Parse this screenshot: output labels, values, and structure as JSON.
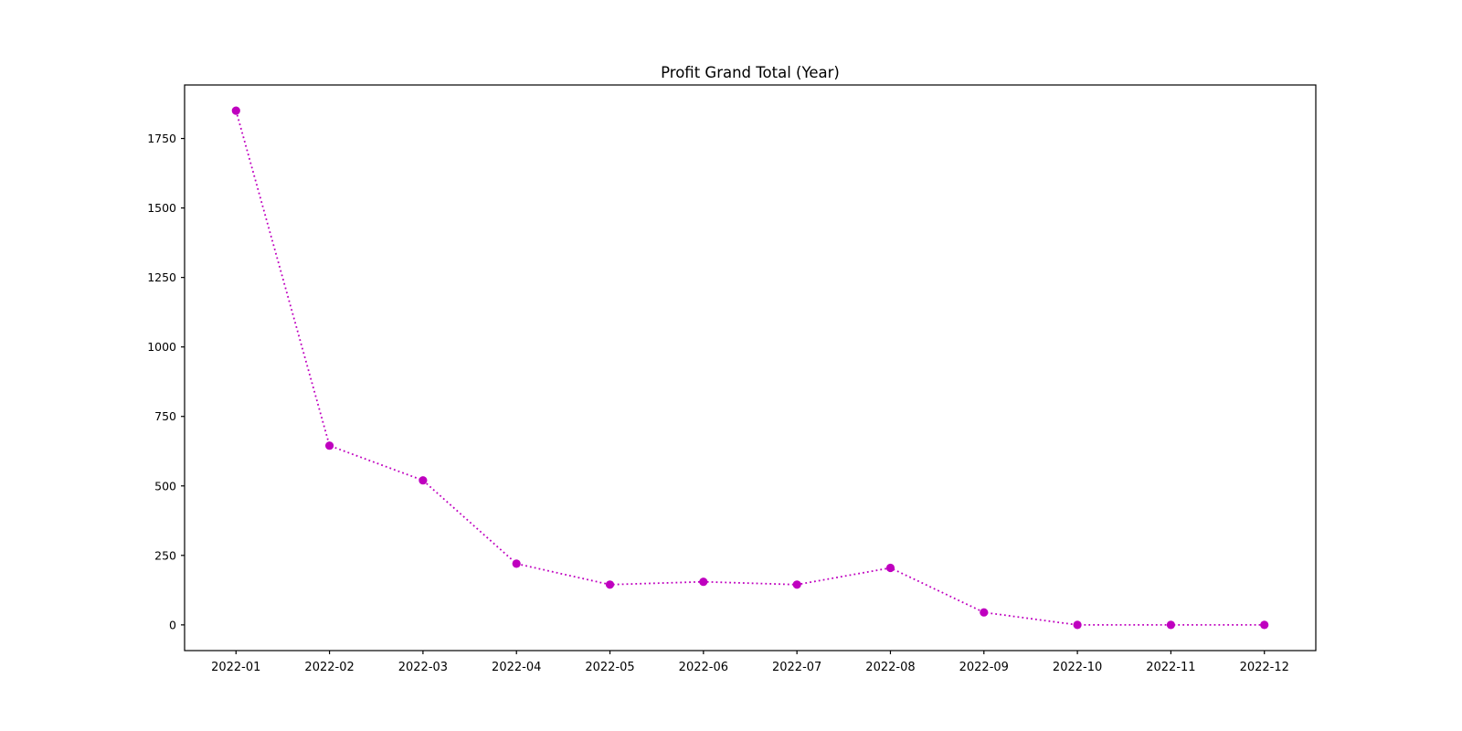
{
  "figure": {
    "kind": "line-chart-figure"
  },
  "chart_data": {
    "type": "line",
    "title": "Profit Grand Total (Year)",
    "x": [
      "2022-01",
      "2022-02",
      "2022-03",
      "2022-04",
      "2022-05",
      "2022-06",
      "2022-07",
      "2022-08",
      "2022-09",
      "2022-10",
      "2022-11",
      "2022-12"
    ],
    "series": [
      {
        "name": "Profit Grand Total",
        "values": [
          1850,
          645,
          520,
          220,
          145,
          155,
          145,
          205,
          45,
          0,
          0,
          0
        ]
      }
    ],
    "xlabel": "",
    "ylabel": "",
    "yticks": [
      0,
      250,
      500,
      750,
      1000,
      1250,
      1500,
      1750
    ],
    "ylim": [
      -92.5,
      1942.5
    ],
    "grid": false,
    "legend_position": "none",
    "line_color": "#bf00bf",
    "line_style": "dotted",
    "marker_style": "circle",
    "background_color": "#ffffff",
    "axis_color": "#000000",
    "text_color": "#000000"
  }
}
